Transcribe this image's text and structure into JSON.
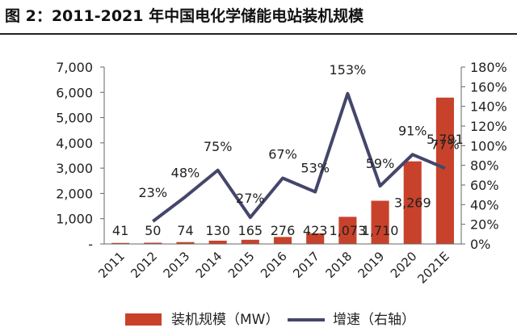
{
  "figure": {
    "title": "图 2：2011-2021 年中国电化学储能电站装机规模"
  },
  "chart_data": {
    "type": "bar",
    "categories": [
      "2011",
      "2012",
      "2013",
      "2014",
      "2015",
      "2016",
      "2017",
      "2018",
      "2019",
      "2020",
      "2021E"
    ],
    "series": [
      {
        "name": "装机规模（MW）",
        "type": "bar",
        "axis": "left",
        "color": "#C8422B",
        "values": [
          41,
          50,
          74,
          130,
          165,
          276,
          423,
          1073,
          1710,
          3269,
          5791
        ],
        "labels": [
          "41",
          "50",
          "74",
          "130",
          "165",
          "276",
          "423",
          "1,073",
          "1,710",
          "3,269",
          "5,791"
        ]
      },
      {
        "name": "增速（右轴）",
        "type": "line",
        "axis": "right",
        "color": "#44466A",
        "values": [
          null,
          23,
          48,
          75,
          27,
          67,
          53,
          153,
          59,
          91,
          77
        ],
        "labels": [
          "",
          "23%",
          "48%",
          "75%",
          "27%",
          "67%",
          "53%",
          "153%",
          "59%",
          "91%",
          "77%"
        ]
      }
    ],
    "y_left": {
      "min": 0,
      "max": 7000,
      "step": 1000,
      "ticks": [
        "-",
        "1,000",
        "2,000",
        "3,000",
        "4,000",
        "5,000",
        "6,000",
        "7,000"
      ]
    },
    "y_right": {
      "min": 0,
      "max": 180,
      "step": 20,
      "ticks": [
        "0%",
        "20%",
        "40%",
        "60%",
        "80%",
        "100%",
        "120%",
        "140%",
        "160%",
        "180%"
      ]
    },
    "grid": false,
    "legend_position": "bottom"
  }
}
